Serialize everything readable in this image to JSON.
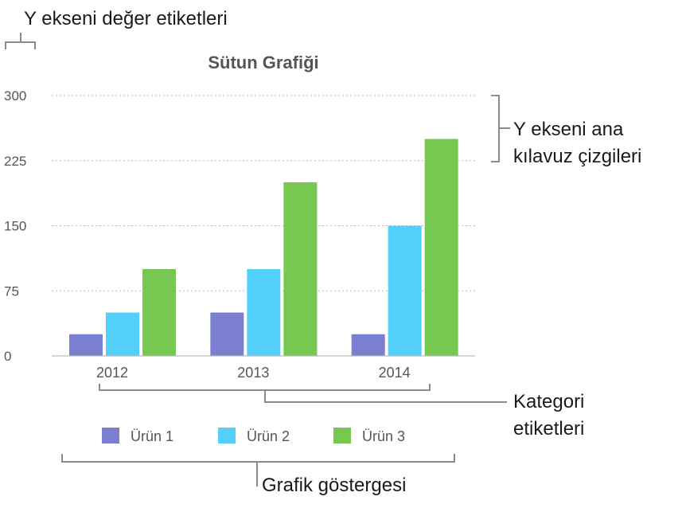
{
  "annotations": {
    "y_axis_value_labels": "Y ekseni değer etiketleri",
    "y_axis_major_gridlines_line1": "Y ekseni ana",
    "y_axis_major_gridlines_line2": "kılavuz çizgileri",
    "category_labels_line1": "Kategori",
    "category_labels_line2": "etiketleri",
    "chart_legend": "Grafik göstergesi"
  },
  "colors": {
    "series": [
      "#7b7fd0",
      "#52cffa",
      "#76c850"
    ],
    "gridline": "#b8b8b8",
    "axis_text": "#555555",
    "bracket": "#8a8a8a"
  },
  "chart_data": {
    "type": "bar",
    "title": "Sütun Grafiği",
    "xlabel": "",
    "ylabel": "",
    "categories": [
      "2012",
      "2013",
      "2014"
    ],
    "series": [
      {
        "name": "Ürün 1",
        "values": [
          25,
          50,
          25
        ]
      },
      {
        "name": "Ürün 2",
        "values": [
          50,
          100,
          150
        ]
      },
      {
        "name": "Ürün 3",
        "values": [
          100,
          200,
          250
        ]
      }
    ],
    "ylim": [
      0,
      300
    ],
    "yticks": [
      "0",
      "75",
      "150",
      "225",
      "300"
    ],
    "grid": true,
    "legend_position": "bottom"
  }
}
